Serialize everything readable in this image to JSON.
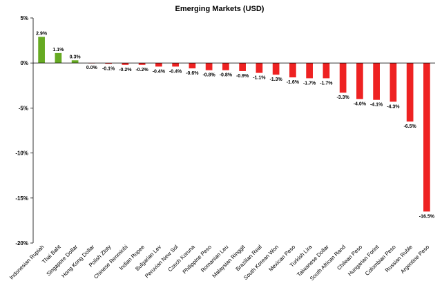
{
  "chart_data": {
    "type": "bar",
    "title": "Emerging Markets (USD)",
    "xlabel": "",
    "ylabel": "",
    "ylim": [
      -20,
      5
    ],
    "yticks": [
      "5%",
      "0%",
      "-5%",
      "-10%",
      "-15%",
      "-20%"
    ],
    "ytick_values": [
      5,
      0,
      -5,
      -10,
      -15,
      -20
    ],
    "grid": false,
    "legend": "none",
    "colors": {
      "positive": "#66aa22",
      "negative": "#ee2222",
      "axis": "#000000"
    },
    "categories": [
      "Indonesian Rupiah",
      "Thai Baht",
      "Singapore Dollar",
      "Hong Kong Dollar",
      "Polish Zloty",
      "Chinese Renminbi",
      "Indian Rupee",
      "Bulgarian Lev",
      "Peruvian New Sol",
      "Czech Koruna",
      "Philippine Peso",
      "Romanian Leu",
      "Malaysian Ringgit",
      "Brazilian Real",
      "South Korean Won",
      "Mexican Peso",
      "Turkish Lira",
      "Taiwanese Dollar",
      "South African Rand",
      "Chilean Peso",
      "Hungarian Forint",
      "Colombian Peso",
      "Russian Ruble",
      "Argentine Peso"
    ],
    "values": [
      2.9,
      1.1,
      0.3,
      0.0,
      -0.1,
      -0.2,
      -0.2,
      -0.4,
      -0.4,
      -0.6,
      -0.8,
      -0.8,
      -0.9,
      -1.1,
      -1.3,
      -1.6,
      -1.7,
      -1.7,
      -3.3,
      -4.0,
      -4.1,
      -4.3,
      -6.5,
      -16.5
    ],
    "data_labels": [
      "2.9%",
      "1.1%",
      "0.3%",
      "0.0%",
      "-0.1%",
      "-0.2%",
      "-0.2%",
      "-0.4%",
      "-0.4%",
      "-0.6%",
      "-0.8%",
      "-0.8%",
      "-0.9%",
      "-1.1%",
      "-1.3%",
      "-1.6%",
      "-1.7%",
      "-1.7%",
      "-3.3%",
      "-4.0%",
      "-4.1%",
      "-4.3%",
      "-6.5%",
      "-16.5%"
    ]
  }
}
